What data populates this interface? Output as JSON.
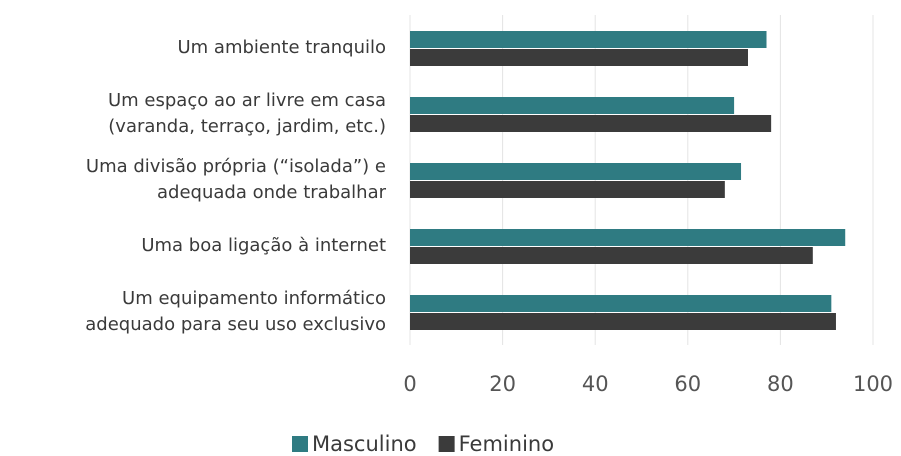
{
  "chart_data": {
    "type": "barh",
    "categories": [
      [
        "Um ambiente tranquilo"
      ],
      [
        "Um espaço ao ar livre em casa",
        "(varanda, terraço, jardim, etc.)"
      ],
      [
        "Uma divisão própria (“isolada”) e",
        "adequada onde trabalhar"
      ],
      [
        "Uma boa ligação à internet"
      ],
      [
        "Um equipamento informático",
        "adequado para seu uso exclusivo"
      ]
    ],
    "series": [
      {
        "name": "Masculino",
        "color": "#2f7b82",
        "values": [
          77,
          70,
          71.5,
          94,
          91
        ]
      },
      {
        "name": "Feminino",
        "color": "#3b3b3b",
        "values": [
          73,
          78,
          68,
          87,
          92
        ]
      }
    ],
    "xlim": [
      0,
      100
    ],
    "xticks": [
      0,
      20,
      40,
      60,
      80,
      100
    ],
    "grid": true,
    "legend": "bottom"
  }
}
